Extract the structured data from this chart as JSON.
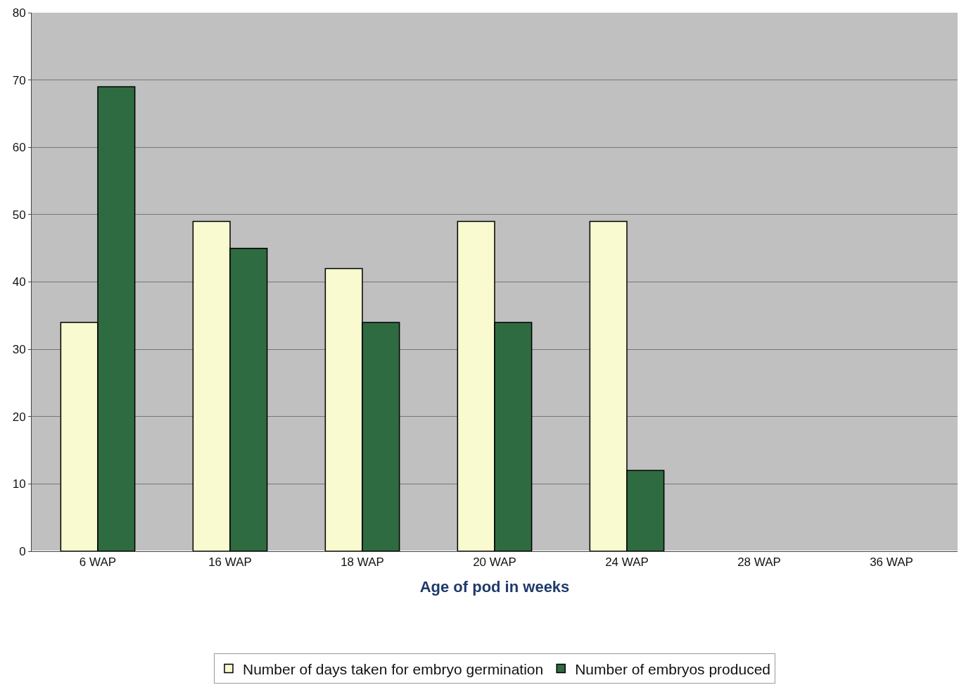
{
  "chart_data": {
    "type": "bar",
    "xlabel": "Age of pod in weeks",
    "categories": [
      "6 WAP",
      "16 WAP",
      "18 WAP",
      "20 WAP",
      "24 WAP",
      "28 WAP",
      "36 WAP"
    ],
    "series": [
      {
        "name": "Number of days taken for embryo germination",
        "color": "#fafad0",
        "values": [
          34,
          49,
          42,
          49,
          49,
          null,
          null
        ]
      },
      {
        "name": "Number of embryos produced",
        "color": "#2f6b40",
        "values": [
          69,
          45,
          34,
          34,
          12,
          null,
          null
        ]
      }
    ],
    "ylim": [
      0,
      80
    ],
    "yticks": [
      0,
      10,
      20,
      30,
      40,
      50,
      60,
      70,
      80
    ],
    "grid": "y",
    "legend": "bottom"
  }
}
